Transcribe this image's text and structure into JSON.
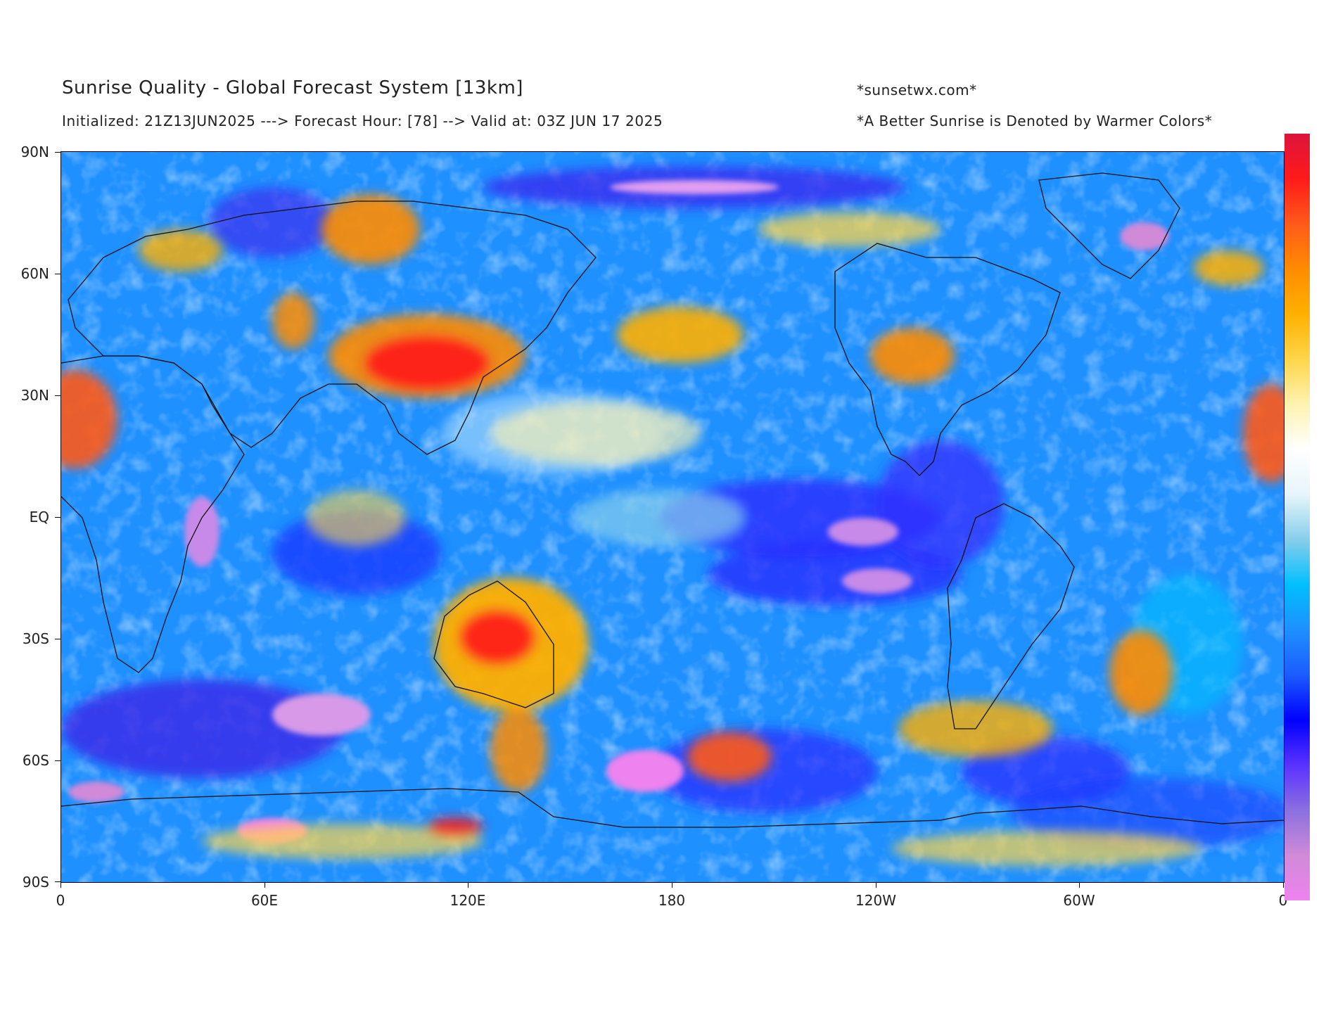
{
  "header": {
    "title": "Sunrise Quality - Global Forecast System [13km]",
    "subtitle": "Initialized: 21Z13JUN2025 ---> Forecast Hour: [78] --> Valid at: 03Z JUN 17 2025",
    "site": "*sunsetwx.com*",
    "note": "*A Better Sunrise is Denoted by Warmer Colors*"
  },
  "axes": {
    "y_labels": [
      "90N",
      "60N",
      "30N",
      "EQ",
      "30S",
      "60S",
      "90S"
    ],
    "x_labels": [
      "0",
      "60E",
      "120E",
      "180",
      "120W",
      "60W",
      "0"
    ]
  },
  "colors": {
    "colorbar": [
      "#ee82ee",
      "#d08ad8",
      "#8a70e0",
      "#5a32ff",
      "#0000ff",
      "#1c5cff",
      "#1e90ff",
      "#00bfff",
      "#87ceeb",
      "#e6f5fb",
      "#ffffff",
      "#fff3b0",
      "#ffd54a",
      "#ffb000",
      "#ff8c00",
      "#ff5a1a",
      "#ff1a1a",
      "#dc143c"
    ],
    "ocean_base": "#1e90ff",
    "land_outline": "#111111"
  }
}
